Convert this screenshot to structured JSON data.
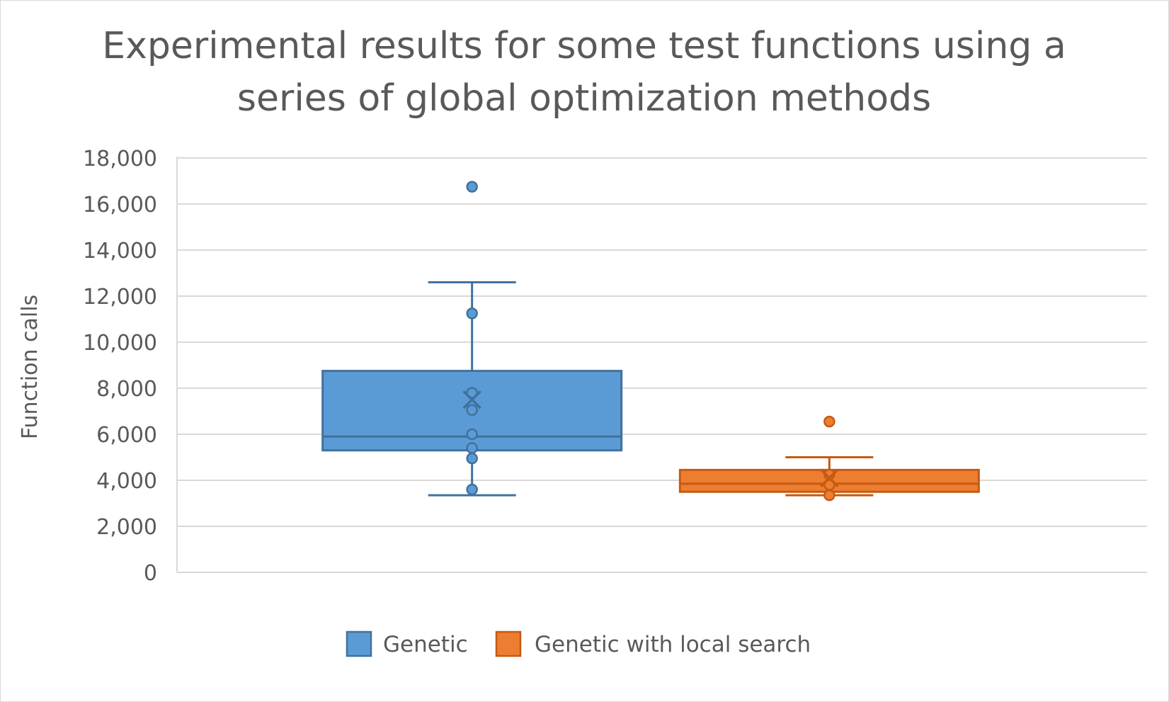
{
  "chart_data": {
    "type": "boxplot",
    "title_line1": "Experimental results for some test functions using a",
    "title_line2": "series of global optimization methods",
    "ylabel": "Function calls",
    "xlabel": "",
    "ylim": [
      0,
      18000
    ],
    "ytick_step": 2000,
    "yticks": [
      "0",
      "2,000",
      "4,000",
      "6,000",
      "8,000",
      "10,000",
      "12,000",
      "14,000",
      "16,000",
      "18,000"
    ],
    "grid": true,
    "legend_position": "bottom",
    "series": [
      {
        "name": "Genetic",
        "color": "#5b9bd5",
        "stroke": "#41719c",
        "whisker_low": 3350,
        "q1": 5300,
        "median": 5900,
        "q3": 8750,
        "whisker_high": 12600,
        "mean": 7500,
        "points": [
          3600,
          4950,
          5400,
          6000,
          7050,
          7800,
          11250
        ],
        "outliers": [
          16750
        ]
      },
      {
        "name": "Genetic with local search",
        "color": "#ed7d31",
        "stroke": "#c55a11",
        "whisker_low": 3350,
        "q1": 3500,
        "median": 3850,
        "q3": 4450,
        "whisker_high": 5000,
        "mean": 4100,
        "points": [
          3350,
          3800,
          4250
        ],
        "outliers": [
          6550
        ]
      }
    ]
  }
}
